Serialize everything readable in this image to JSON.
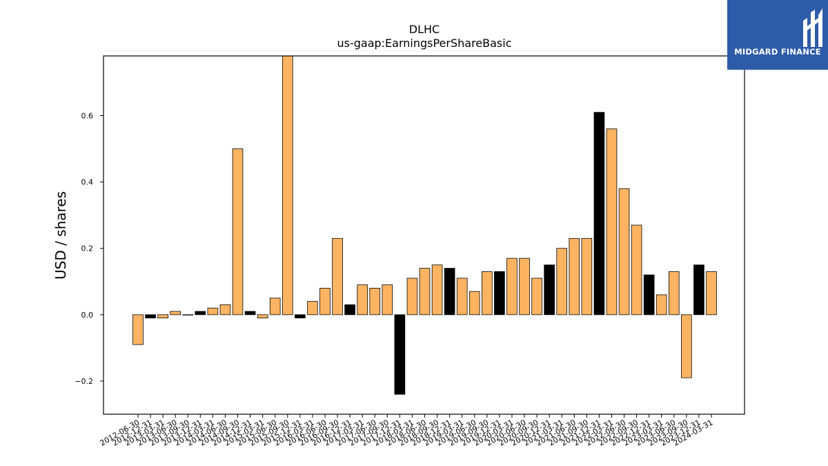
{
  "chart_data": {
    "type": "bar",
    "title": "DLHC",
    "subtitle": "us-gaap:EarningsPerShareBasic",
    "xlabel": "",
    "ylabel": "USD / shares",
    "ylim": [
      -0.3,
      0.78
    ],
    "yticks": [
      -0.2,
      0.0,
      0.2,
      0.4,
      0.6
    ],
    "ytick_labels": [
      "−0.2",
      "0.0",
      "0.2",
      "0.4",
      "0.6"
    ],
    "grid": false,
    "colors": {
      "quarterly": "#fdb462",
      "annual": "#000000",
      "edge": "#000000"
    },
    "categories": [
      "2012-06-30",
      "2012-12-31",
      "2013-03-31",
      "2013-06-30",
      "2013-09-30",
      "2013-12-31",
      "2014-03-31",
      "2014-06-30",
      "2014-09-30",
      "2014-12-31",
      "2015-03-31",
      "2015-06-30",
      "2015-09-30",
      "2015-12-31",
      "2016-03-31",
      "2016-06-30",
      "2016-09-30",
      "2016-12-31",
      "2017-03-31",
      "2017-06-30",
      "2017-09-30",
      "2017-12-31",
      "2018-03-31",
      "2018-06-30",
      "2018-09-30",
      "2018-12-31",
      "2019-03-31",
      "2019-06-30",
      "2019-09-30",
      "2019-12-31",
      "2020-03-31",
      "2020-06-30",
      "2020-09-30",
      "2020-12-31",
      "2021-03-31",
      "2021-06-30",
      "2021-09-30",
      "2021-12-31",
      "2022-03-31",
      "2022-06-30",
      "2022-09-30",
      "2022-12-31",
      "2023-03-31",
      "2023-06-30",
      "2023-09-30",
      "2023-12-31",
      "2024-03-31"
    ],
    "values": [
      -0.09,
      -0.01,
      -0.01,
      0.01,
      0.0,
      0.01,
      0.02,
      0.03,
      0.5,
      0.01,
      -0.01,
      0.05,
      0.78,
      -0.01,
      0.04,
      0.08,
      0.23,
      0.03,
      0.09,
      0.08,
      0.09,
      -0.24,
      0.11,
      0.14,
      0.15,
      0.14,
      0.11,
      0.07,
      0.13,
      0.13,
      0.17,
      0.17,
      0.11,
      0.15,
      0.2,
      0.23,
      0.23,
      0.61,
      0.56,
      0.38,
      0.27,
      0.12,
      0.06,
      0.13,
      -0.19,
      0.15,
      0.13
    ],
    "annual": [
      false,
      true,
      false,
      false,
      false,
      true,
      false,
      false,
      false,
      true,
      false,
      false,
      false,
      true,
      false,
      false,
      false,
      true,
      false,
      false,
      false,
      true,
      false,
      false,
      false,
      true,
      false,
      false,
      false,
      true,
      false,
      false,
      false,
      true,
      false,
      false,
      false,
      true,
      false,
      false,
      false,
      true,
      false,
      false,
      false,
      true,
      false
    ]
  },
  "logo": {
    "text": "MIDGARD FINANCE",
    "background": "#2d5ba8"
  }
}
